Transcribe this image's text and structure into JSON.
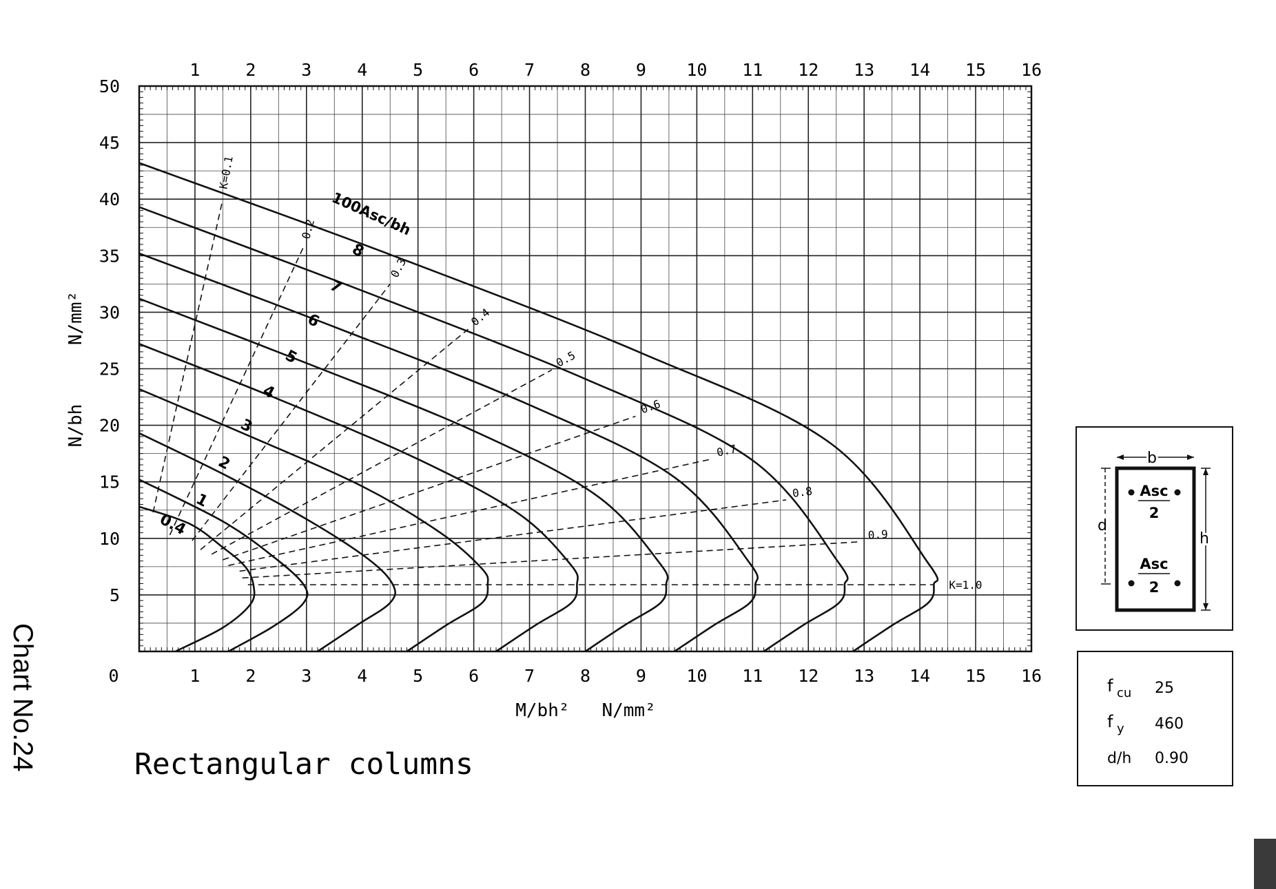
{
  "chart_data": {
    "type": "line",
    "title": "Rectangular columns",
    "chart_label": "Chart No.24",
    "xlabel": "M/bh²   N/mm²",
    "ylabel_main": "N/bh",
    "ylabel_unit": "N/mm²",
    "xlim": [
      0,
      16
    ],
    "ylim": [
      0,
      50
    ],
    "x_ticks": [
      "1",
      "2",
      "3",
      "4",
      "5",
      "6",
      "7",
      "8",
      "9",
      "10",
      "11",
      "12",
      "13",
      "14",
      "15",
      "16"
    ],
    "x_ticks_top": [
      "1",
      "2",
      "3",
      "4",
      "5",
      "6",
      "7",
      "8",
      "9",
      "10",
      "11",
      "12",
      "13",
      "14",
      "15",
      "16"
    ],
    "x_zero_label": "0",
    "y_ticks": [
      "5",
      "10",
      "15",
      "20",
      "25",
      "30",
      "35",
      "40",
      "45",
      "50"
    ],
    "grid": true,
    "steel_label": "100Asc/bh",
    "series": [
      {
        "name": "0.4",
        "points": [
          [
            0,
            12.8
          ],
          [
            0.9,
            11.3
          ],
          [
            1.5,
            9.2
          ],
          [
            1.9,
            7.5
          ],
          [
            2.05,
            5.85
          ],
          [
            2.0,
            4.2
          ],
          [
            1.5,
            2.1
          ],
          [
            0.65,
            0
          ]
        ]
      },
      {
        "name": "1",
        "points": [
          [
            0,
            15.2
          ],
          [
            1.5,
            11.5
          ],
          [
            2.4,
            8.4
          ],
          [
            2.95,
            5.9
          ],
          [
            2.95,
            4.3
          ],
          [
            2.4,
            2.2
          ],
          [
            1.6,
            0
          ]
        ]
      },
      {
        "name": "2",
        "points": [
          [
            0,
            19.3
          ],
          [
            1.5,
            15.7
          ],
          [
            3.0,
            11.7
          ],
          [
            4.1,
            8.2
          ],
          [
            4.55,
            5.9
          ],
          [
            4.5,
            4.3
          ],
          [
            3.9,
            2.3
          ],
          [
            3.2,
            0
          ]
        ]
      },
      {
        "name": "3",
        "points": [
          [
            0,
            23.2
          ],
          [
            2.0,
            19.0
          ],
          [
            4.0,
            14.6
          ],
          [
            5.4,
            10.5
          ],
          [
            6.15,
            7.3
          ],
          [
            6.25,
            5.9
          ],
          [
            6.15,
            4.3
          ],
          [
            5.5,
            2.3
          ],
          [
            4.8,
            0
          ]
        ]
      },
      {
        "name": "4",
        "points": [
          [
            0,
            27.2
          ],
          [
            2.5,
            22.3
          ],
          [
            5.0,
            17.0
          ],
          [
            6.8,
            12.2
          ],
          [
            7.75,
            7.6
          ],
          [
            7.85,
            5.9
          ],
          [
            7.75,
            4.3
          ],
          [
            7.1,
            2.3
          ],
          [
            6.4,
            0
          ]
        ]
      },
      {
        "name": "5",
        "points": [
          [
            0,
            31.2
          ],
          [
            3.0,
            25.5
          ],
          [
            6.0,
            19.5
          ],
          [
            8.2,
            13.8
          ],
          [
            9.35,
            7.7
          ],
          [
            9.45,
            5.9
          ],
          [
            9.35,
            4.3
          ],
          [
            8.7,
            2.3
          ],
          [
            8.0,
            0
          ]
        ]
      },
      {
        "name": "6",
        "points": [
          [
            0,
            35.2
          ],
          [
            3.5,
            28.7
          ],
          [
            7.0,
            21.8
          ],
          [
            9.6,
            15.4
          ],
          [
            10.95,
            7.8
          ],
          [
            11.05,
            5.9
          ],
          [
            10.95,
            4.3
          ],
          [
            10.3,
            2.3
          ],
          [
            9.6,
            0
          ]
        ]
      },
      {
        "name": "7",
        "points": [
          [
            0,
            39.3
          ],
          [
            4.0,
            31.9
          ],
          [
            8.0,
            24.1
          ],
          [
            11.0,
            16.9
          ],
          [
            12.55,
            7.8
          ],
          [
            12.65,
            5.9
          ],
          [
            12.55,
            4.3
          ],
          [
            11.9,
            2.3
          ],
          [
            11.2,
            0
          ]
        ]
      },
      {
        "name": "8",
        "points": [
          [
            0,
            43.2
          ],
          [
            4.5,
            35.1
          ],
          [
            9.0,
            26.4
          ],
          [
            12.4,
            18.4
          ],
          [
            14.15,
            7.8
          ],
          [
            14.25,
            5.9
          ],
          [
            14.15,
            4.3
          ],
          [
            13.5,
            2.3
          ],
          [
            12.8,
            0
          ]
        ]
      }
    ],
    "k_lines": [
      {
        "label": "K=0.1",
        "points": [
          [
            0.25,
            12.3
          ],
          [
            1.5,
            40.0
          ]
        ]
      },
      {
        "label": "0.2",
        "points": [
          [
            0.55,
            10.3
          ],
          [
            2.95,
            35.8
          ]
        ]
      },
      {
        "label": "0.3",
        "points": [
          [
            0.95,
            9.8
          ],
          [
            4.5,
            32.5
          ]
        ]
      },
      {
        "label": "0.4",
        "points": [
          [
            1.1,
            9.0
          ],
          [
            5.9,
            28.5
          ]
        ]
      },
      {
        "label": "0.5",
        "points": [
          [
            1.3,
            8.6
          ],
          [
            7.4,
            24.9
          ]
        ]
      },
      {
        "label": "0.6",
        "points": [
          [
            1.5,
            8.1
          ],
          [
            8.9,
            20.8
          ]
        ]
      },
      {
        "label": "0.7",
        "points": [
          [
            1.6,
            7.6
          ],
          [
            10.25,
            17.0
          ]
        ]
      },
      {
        "label": "0.8",
        "points": [
          [
            1.8,
            7.1
          ],
          [
            11.6,
            13.4
          ]
        ]
      },
      {
        "label": "0.9",
        "points": [
          [
            1.85,
            6.5
          ],
          [
            12.95,
            9.7
          ]
        ]
      },
      {
        "label": "K=1.0",
        "points": [
          [
            1.95,
            5.9
          ],
          [
            14.25,
            5.9
          ]
        ]
      }
    ],
    "curve_labels": [
      "0.4",
      "1",
      "2",
      "3",
      "4",
      "5",
      "6",
      "7",
      "8"
    ]
  },
  "section_diagram": {
    "b_label": "b",
    "d_label": "d",
    "h_label": "h",
    "top_steel_num": "Asc",
    "top_steel_den": "2",
    "bottom_steel_num": "Asc",
    "bottom_steel_den": "2"
  },
  "parameters": [
    {
      "symbol": "f",
      "sub": "cu",
      "value": "25"
    },
    {
      "symbol": "f",
      "sub": "y",
      "value": "460"
    },
    {
      "symbol": "d/h",
      "sub": "",
      "value": "0.90"
    }
  ]
}
